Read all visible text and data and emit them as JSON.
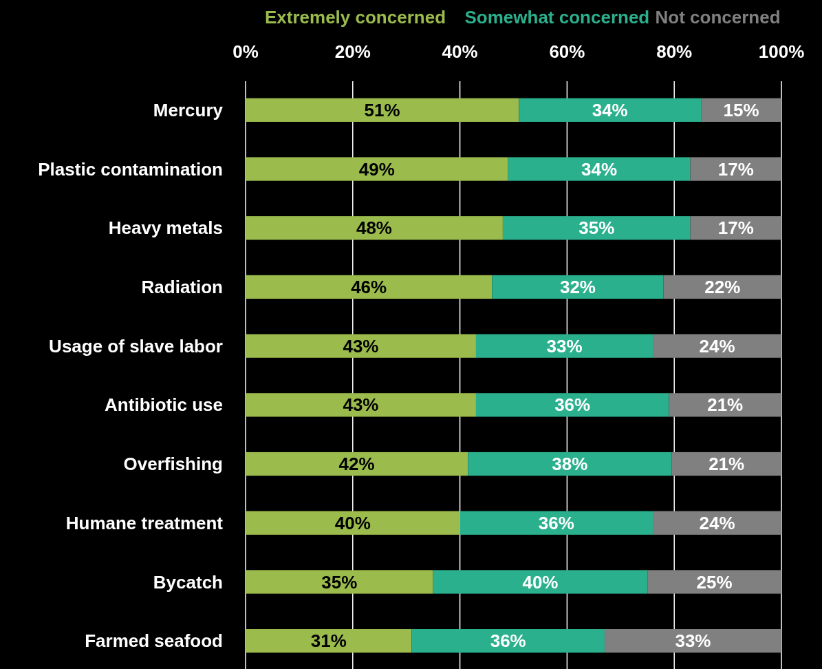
{
  "chart_data": {
    "type": "bar",
    "orientation": "horizontal",
    "stacked": true,
    "categories": [
      "Mercury",
      "Plastic contamination",
      "Heavy metals",
      "Radiation",
      "Usage of slave labor",
      "Antibiotic use",
      "Overfishing",
      "Humane treatment",
      "Bycatch",
      "Farmed seafood"
    ],
    "series": [
      {
        "name": "Extremely concerned",
        "color": "#9bbb4d",
        "values": [
          51,
          49,
          48,
          46,
          43,
          43,
          41.5,
          40,
          35,
          31
        ],
        "value_labels": [
          "51%",
          "49%",
          "48%",
          "46%",
          "43%",
          "43%",
          "42%",
          "40%",
          "35%",
          "31%"
        ]
      },
      {
        "name": "Somewhat concerned",
        "color": "#2bb08e",
        "values": [
          34,
          34,
          35,
          32,
          33,
          36,
          38,
          36,
          40,
          36
        ],
        "value_labels": [
          "34%",
          "34%",
          "35%",
          "32%",
          "33%",
          "36%",
          "38%",
          "36%",
          "40%",
          "36%"
        ]
      },
      {
        "name": "Not concerned",
        "color": "#808080",
        "values": [
          15,
          17,
          17,
          22,
          24,
          21,
          20.5,
          24,
          25,
          33
        ],
        "value_labels": [
          "15%",
          "17%",
          "17%",
          "22%",
          "24%",
          "21%",
          "21%",
          "24%",
          "25%",
          "33%"
        ]
      }
    ],
    "xlim": [
      0,
      100
    ],
    "xticks": [
      {
        "value": 0,
        "label": "0%"
      },
      {
        "value": 20,
        "label": "20%"
      },
      {
        "value": 40,
        "label": "40%"
      },
      {
        "value": 60,
        "label": "60%"
      },
      {
        "value": 80,
        "label": "80%"
      },
      {
        "value": 100,
        "label": "100%"
      }
    ],
    "grid": "x",
    "legend": "top"
  }
}
